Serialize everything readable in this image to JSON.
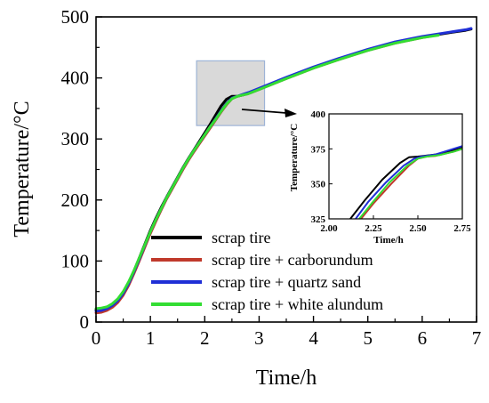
{
  "chart_data": {
    "type": "line",
    "xlabel": "Time/h",
    "ylabel": "Temperature/°C",
    "xlim": [
      0,
      7
    ],
    "ylim": [
      0,
      500
    ],
    "x_ticks": [
      "0",
      "1",
      "2",
      "3",
      "4",
      "5",
      "6",
      "7"
    ],
    "y_ticks": [
      "0",
      "100",
      "200",
      "300",
      "400",
      "500"
    ],
    "grid": false,
    "legend_position": "bottom-center",
    "zoom_region": {
      "x": [
        1.85,
        3.1
      ],
      "y": [
        322,
        428
      ]
    },
    "series": [
      {
        "name": "scrap tire",
        "color": "#000000",
        "x": [
          0,
          0.1,
          0.2,
          0.3,
          0.4,
          0.5,
          0.6,
          0.7,
          0.8,
          0.9,
          1.0,
          1.1,
          1.2,
          1.3,
          1.4,
          1.5,
          1.6,
          1.7,
          1.8,
          1.9,
          2.0,
          2.1,
          2.2,
          2.3,
          2.4,
          2.5,
          2.6,
          2.7,
          2.8,
          3.0,
          3.5,
          4.0,
          4.5,
          5.0,
          5.5,
          6.0,
          6.5,
          6.8,
          6.9
        ],
        "y": [
          20,
          21,
          23,
          28,
          36,
          48,
          64,
          84,
          106,
          128,
          150,
          170,
          188,
          205,
          221,
          237,
          253,
          268,
          282,
          296,
          310,
          324,
          339,
          354,
          365,
          370,
          370,
          372,
          375,
          382,
          400,
          417,
          432,
          446,
          458,
          467,
          474,
          478,
          480
        ]
      },
      {
        "name": "scrap tire + carborundum",
        "color": "#c0392b",
        "x": [
          0,
          0.1,
          0.2,
          0.3,
          0.4,
          0.5,
          0.6,
          0.7,
          0.8,
          0.9,
          1.0,
          1.1,
          1.2,
          1.3,
          1.4,
          1.5,
          1.6,
          1.7,
          1.8,
          1.9,
          2.0,
          2.1,
          2.2,
          2.3,
          2.4,
          2.5,
          2.6,
          2.7,
          2.8,
          3.0,
          3.5,
          4.0,
          4.5,
          5.0,
          5.5,
          6.0,
          6.2
        ],
        "y": [
          15,
          16,
          19,
          24,
          32,
          44,
          60,
          80,
          101,
          123,
          145,
          165,
          184,
          202,
          218,
          234,
          250,
          265,
          279,
          292,
          305,
          318,
          331,
          344,
          356,
          366,
          370,
          372,
          374,
          381,
          399,
          416,
          431,
          445,
          457,
          466,
          469
        ]
      },
      {
        "name": "scrap tire + quartz sand",
        "color": "#1f2fd6",
        "x": [
          0,
          0.1,
          0.2,
          0.3,
          0.4,
          0.5,
          0.6,
          0.7,
          0.8,
          0.9,
          1.0,
          1.1,
          1.2,
          1.3,
          1.4,
          1.5,
          1.6,
          1.7,
          1.8,
          1.9,
          2.0,
          2.1,
          2.2,
          2.3,
          2.4,
          2.5,
          2.6,
          2.7,
          2.8,
          3.0,
          3.5,
          4.0,
          4.5,
          5.0,
          5.5,
          6.0,
          6.5,
          6.8,
          6.9
        ],
        "y": [
          18,
          19,
          22,
          27,
          35,
          47,
          63,
          83,
          104,
          126,
          148,
          168,
          186,
          204,
          220,
          236,
          252,
          267,
          281,
          294,
          307,
          320,
          333,
          346,
          358,
          367,
          370,
          373,
          376,
          383,
          401,
          418,
          433,
          447,
          459,
          468,
          475,
          479,
          481
        ]
      },
      {
        "name": "scrap tire + white alundum",
        "color": "#33dd33",
        "x": [
          0,
          0.1,
          0.2,
          0.3,
          0.4,
          0.5,
          0.6,
          0.7,
          0.8,
          0.9,
          1.0,
          1.1,
          1.2,
          1.3,
          1.4,
          1.5,
          1.6,
          1.7,
          1.8,
          1.9,
          2.0,
          2.1,
          2.2,
          2.3,
          2.4,
          2.5,
          2.6,
          2.7,
          2.8,
          3.0,
          3.5,
          4.0,
          4.5,
          5.0,
          5.5,
          6.0,
          6.3
        ],
        "y": [
          22,
          23,
          25,
          30,
          38,
          50,
          66,
          85,
          106,
          127,
          148,
          168,
          186,
          204,
          220,
          236,
          252,
          267,
          281,
          294,
          307,
          320,
          332,
          345,
          357,
          366,
          370,
          372,
          374,
          381,
          399,
          416,
          431,
          445,
          457,
          466,
          470
        ]
      }
    ],
    "inset": {
      "xlabel": "Time/h",
      "ylabel": "Temperature/°C",
      "xlim": [
        2.0,
        2.75
      ],
      "ylim": [
        325,
        400
      ],
      "x_ticks": [
        "2.00",
        "2.25",
        "2.50",
        "2.75"
      ],
      "y_ticks": [
        "325",
        "350",
        "375",
        "400"
      ],
      "series": [
        {
          "name": "scrap tire",
          "color": "#000000",
          "x": [
            2.12,
            2.2,
            2.3,
            2.4,
            2.45,
            2.5,
            2.6,
            2.7,
            2.75
          ],
          "y": [
            325,
            338,
            353,
            365,
            369,
            369.5,
            371,
            374,
            376
          ]
        },
        {
          "name": "scrap tire + carborundum",
          "color": "#c0392b",
          "x": [
            2.18,
            2.25,
            2.35,
            2.45,
            2.5,
            2.55,
            2.6,
            2.7,
            2.75
          ],
          "y": [
            325,
            336,
            350,
            363,
            368,
            369.5,
            370,
            373,
            375
          ]
        },
        {
          "name": "scrap tire + quartz sand",
          "color": "#1f2fd6",
          "x": [
            2.15,
            2.22,
            2.32,
            2.42,
            2.48,
            2.52,
            2.6,
            2.7,
            2.75
          ],
          "y": [
            325,
            337,
            351,
            363,
            368,
            369.5,
            371,
            375,
            377
          ]
        },
        {
          "name": "scrap tire + white alundum",
          "color": "#33dd33",
          "x": [
            2.17,
            2.24,
            2.34,
            2.44,
            2.5,
            2.55,
            2.62,
            2.7,
            2.75
          ],
          "y": [
            325,
            336,
            351,
            363,
            368,
            369.5,
            370.5,
            373,
            375
          ]
        }
      ]
    }
  }
}
